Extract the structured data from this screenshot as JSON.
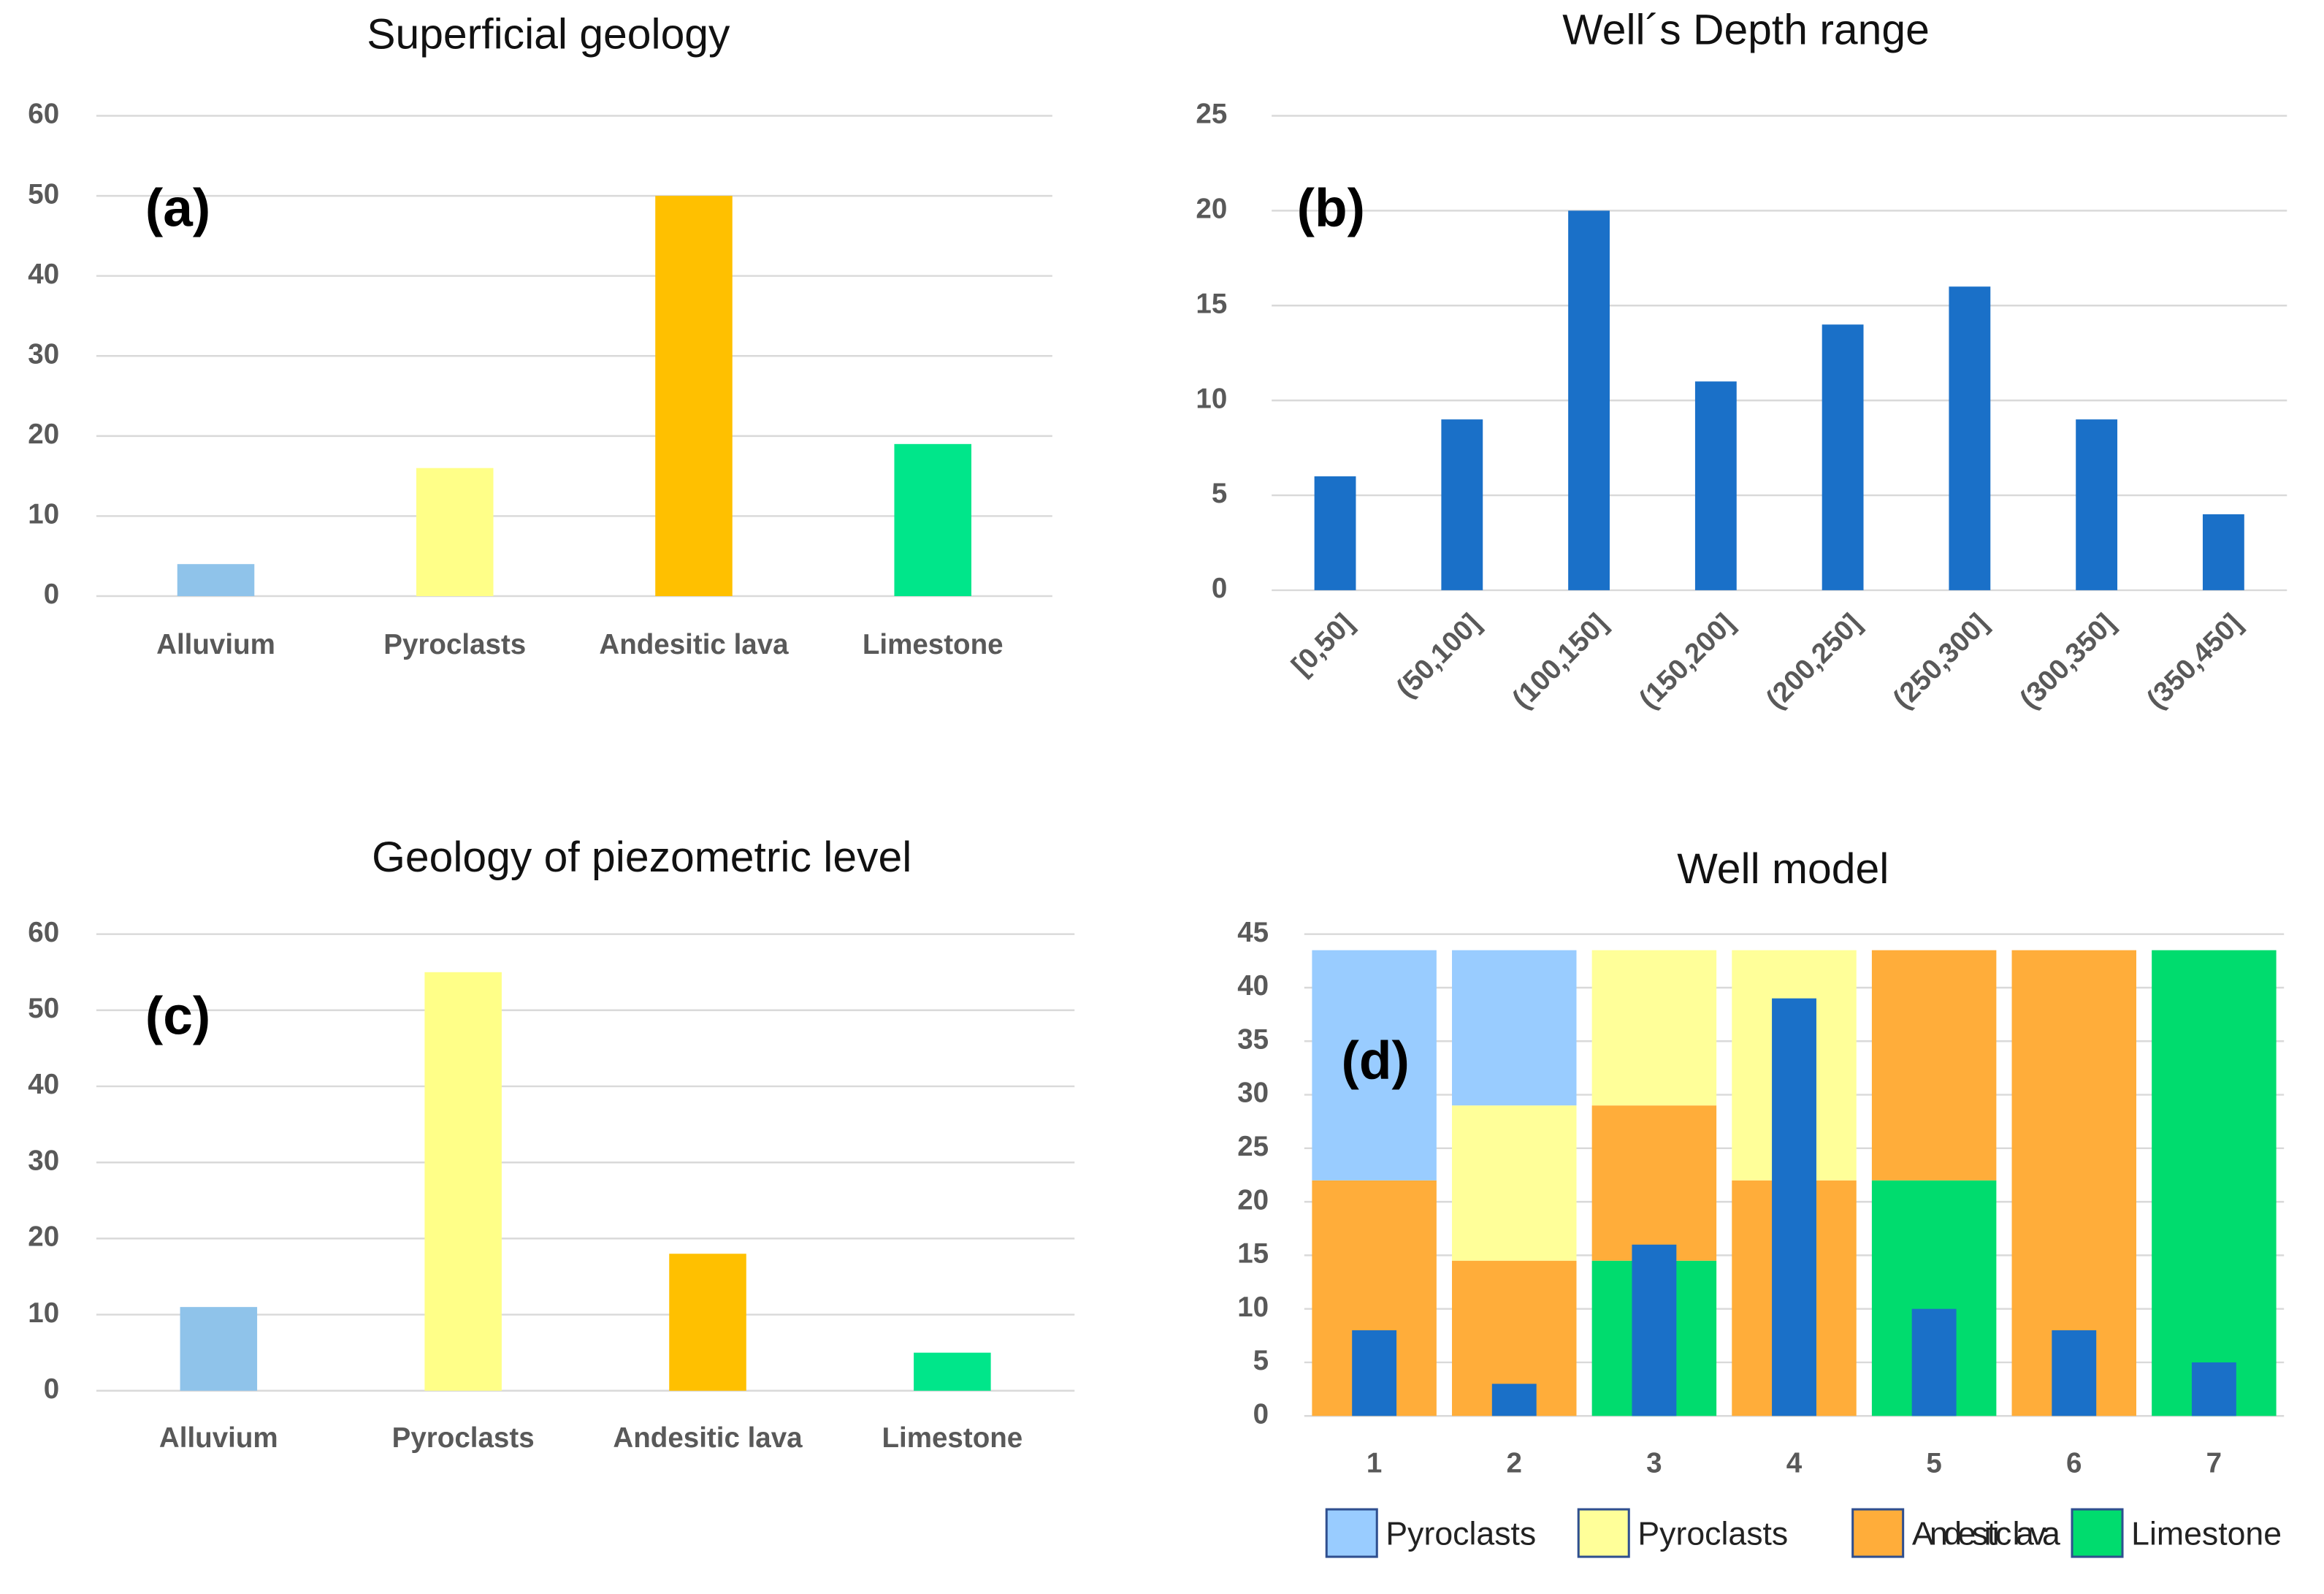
{
  "chart_data": [
    {
      "type": "bar",
      "title": "Superficial geology",
      "annotation": "(a)",
      "categories": [
        "Alluvium",
        "Pyroclasts",
        "Andesitic lava",
        "Limestone"
      ],
      "values": [
        4,
        16,
        50,
        19
      ],
      "colors": [
        "#8fc3ea",
        "#ffff88",
        "#ffc000",
        "#00e68a"
      ],
      "ylim": [
        0,
        60
      ],
      "yticks": [
        0,
        10,
        20,
        30,
        40,
        50,
        60
      ],
      "grid": true
    },
    {
      "type": "bar",
      "title": "Well´s Depth range",
      "annotation": "(b)",
      "categories": [
        "[0,50]",
        "(50,100]",
        "(100,150]",
        "(150,200]",
        "(200,250]",
        "(250,300]",
        "(300,350]",
        "(350,450]"
      ],
      "values": [
        6,
        9,
        20,
        11,
        14,
        16,
        9,
        4
      ],
      "color": "#1a70c8",
      "ylim": [
        0,
        25
      ],
      "yticks": [
        0,
        5,
        10,
        15,
        20,
        25
      ],
      "grid": true
    },
    {
      "type": "bar",
      "title": "Geology of piezometric level",
      "annotation": "(c)",
      "categories": [
        "Alluvium",
        "Pyroclasts",
        "Andesitic lava",
        "Limestone"
      ],
      "values": [
        11,
        55,
        18,
        5
      ],
      "colors": [
        "#8fc3ea",
        "#ffff88",
        "#ffc000",
        "#00e68a"
      ],
      "ylim": [
        0,
        60
      ],
      "yticks": [
        0,
        10,
        20,
        30,
        40,
        50,
        60
      ],
      "grid": true
    },
    {
      "type": "stacked_bar",
      "title": "Well model",
      "annotation": "(d)",
      "categories": [
        "1",
        "2",
        "3",
        "4",
        "5",
        "6",
        "7"
      ],
      "series": [
        {
          "name": "Limestone",
          "color": "#00dc6e",
          "values": [
            null,
            null,
            14.5,
            null,
            22,
            null,
            43.5
          ]
        },
        {
          "name": "Andesitic lava",
          "color": "#ffad3a",
          "values": [
            22,
            14.5,
            14.5,
            22,
            21.5,
            43.5,
            null
          ]
        },
        {
          "name": "Pyroclasts",
          "color": "#ffff99",
          "values": [
            null,
            14.5,
            14.5,
            21.5,
            null,
            null,
            null
          ]
        },
        {
          "name": "Pyroclasts",
          "color": "#99ccff",
          "values": [
            21.5,
            14.5,
            null,
            null,
            null,
            null,
            null
          ]
        }
      ],
      "bars": {
        "color": "#1a70c8",
        "values": [
          8,
          3,
          16,
          39,
          10,
          8,
          5
        ]
      },
      "ylim": [
        0,
        45
      ],
      "yticks": [
        0,
        5,
        10,
        15,
        20,
        25,
        30,
        35,
        40,
        45
      ],
      "grid": true
    }
  ]
}
